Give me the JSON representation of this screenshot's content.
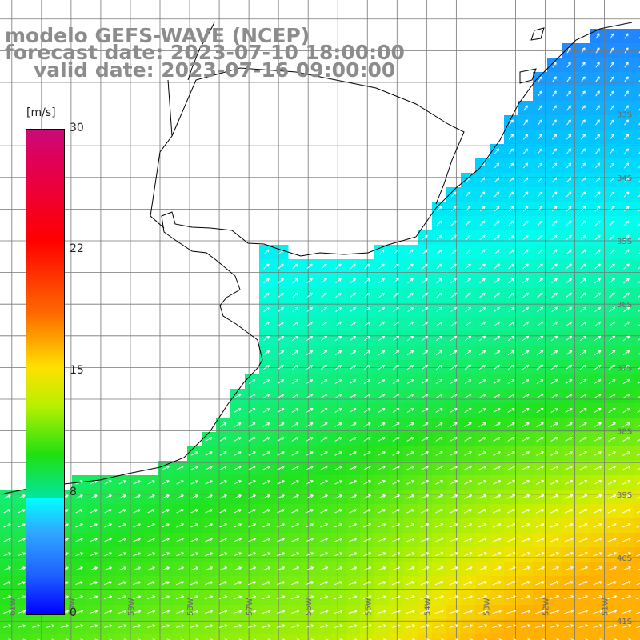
{
  "title": {
    "line1": "modelo GEFS-WAVE (NCEP)",
    "line2": "forecast date: 2023-07-10 18:00:00",
    "line3": "valid date: 2023-07-16 09:00:00"
  },
  "colorbar": {
    "unit": "[m/s]",
    "ticks": [
      "30",
      "22",
      "15",
      "8",
      "0"
    ],
    "tick_values": [
      30,
      22,
      15,
      8,
      0
    ],
    "colors": [
      "#0000ff",
      "#1e60ff",
      "#2fa8ff",
      "#00ffff",
      "#00e6a0",
      "#20e010",
      "#b8f000",
      "#ffe000",
      "#ff6a00",
      "#ff0000",
      "#c80c78"
    ]
  },
  "map": {
    "variable": "wind speed",
    "lat_labels": [
      "33S",
      "34S",
      "35S",
      "36S",
      "37S",
      "38S",
      "39S",
      "40S",
      "41S"
    ],
    "lat_values": [
      -33,
      -34,
      -35,
      -36,
      -37,
      -38,
      -39,
      -40,
      -41
    ],
    "lon_labels": [
      "61W",
      "60W",
      "59W",
      "58W",
      "57W",
      "56W",
      "55W",
      "54W",
      "53W",
      "52W",
      "51W"
    ],
    "lon_values": [
      -61,
      -60,
      -59,
      -58,
      -57,
      -56,
      -55,
      -54,
      -53,
      -52,
      -51
    ],
    "lat_range": [
      -41.3,
      -31.2
    ],
    "lon_range": [
      -61.2,
      -50.4
    ],
    "grid": true,
    "land_color": "#ffffff",
    "wind_direction": "towards northeast",
    "speed_range_ms": [
      3,
      17
    ]
  }
}
